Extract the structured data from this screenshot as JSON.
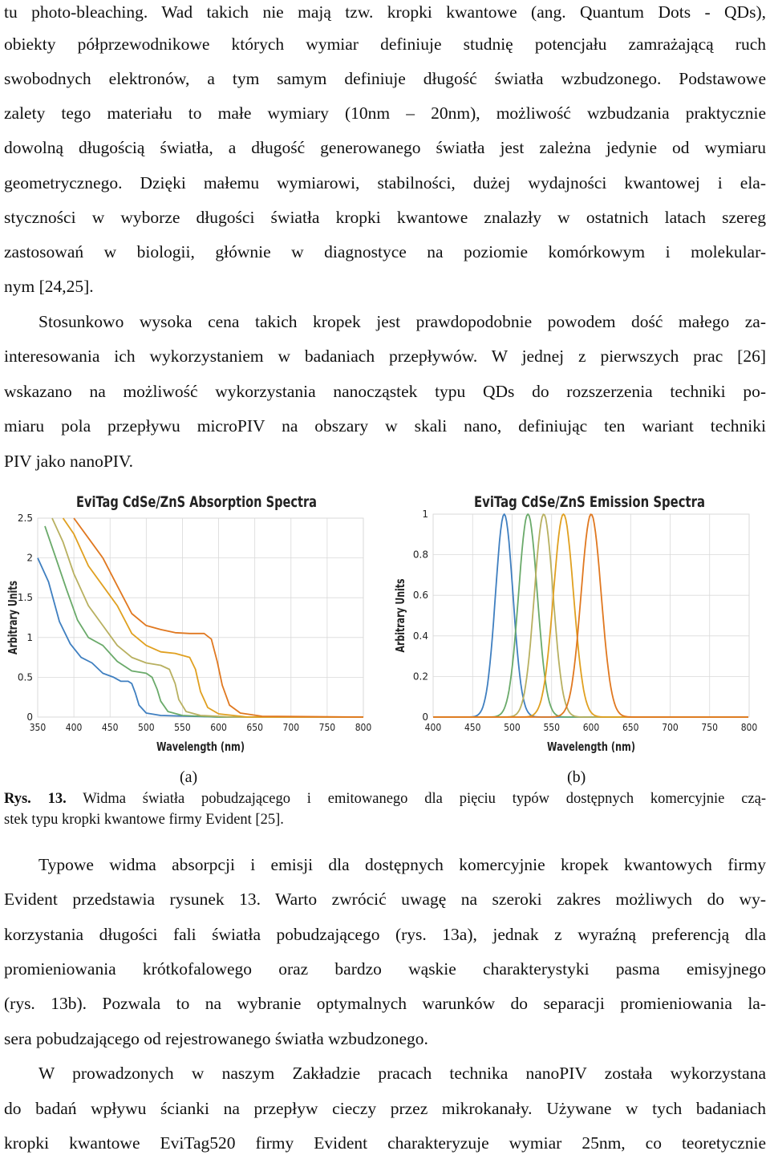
{
  "paragraph1": [
    "tu photo-bleaching. Wad takich nie mają tzw. kropki kwantowe (ang. Quantum Dots - QDs),",
    "obiekty półprzewodnikowe których wymiar definiuje studnię potencjału zamrażającą ruch",
    "swobodnych elektronów, a tym samym definiuje długość światła wzbudzonego. Podstawowe",
    "zalety tego materiału to małe wymiary (10nm – 20nm), możliwość wzbudzania praktycznie",
    "dowolną długością światła, a długość generowanego światła jest zależna jedynie od wymiaru",
    "geometrycznego. Dzięki małemu wymiarowi, stabilności, dużej wydajności kwantowej i ela-",
    "styczności w wyborze długości światła kropki kwantowe znalazły w ostatnich latach szereg",
    "zastosowań w biologii, głównie w diagnostyce na poziomie komórkowym i molekular-",
    "nym [24,25]."
  ],
  "paragraph2": [
    "Stosunkowo wysoka cena takich kropek jest prawdopodobnie powodem dość małego za-",
    "interesowania ich wykorzystaniem w badaniach przepływów. W jednej z pierwszych prac [26]",
    "wskazano na możliwość wykorzystania nanocząstek typu QDs do rozszerzenia techniki po-",
    "miaru pola przepływu microPIV na obszary w skali nano, definiując  ten wariant  techniki",
    "PIV jako nanoPIV."
  ],
  "figure": {
    "label_a": "(a)",
    "label_b": "(b)",
    "caption_prefix": "Rys. 13.",
    "caption_line1": " Widma światła pobudzającego i emitowanego dla pięciu typów dostępnych komercyjnie czą-",
    "caption_line2": "stek typu kropki kwantowe firmy Evident [25]."
  },
  "paragraph3": [
    "Typowe widma absorpcji i emisji dla dostępnych komercyjnie kropek kwantowych firmy",
    "Evident przedstawia rysunek 13. Warto zwrócić uwagę na szeroki zakres możliwych do wy-",
    "korzystania długości fali światła pobudzającego (rys. 13a), jednak z wyraźną preferencją dla",
    "promieniowania krótkofalowego oraz bardzo wąskie charakterystyki pasma emisyjnego",
    "(rys. 13b). Pozwala to na wybranie optymalnych warunków do separacji promieniowania la-",
    "sera pobudzającego od rejestrowanego światła wzbudzonego."
  ],
  "paragraph4": [
    "W prowadzonych w naszym Zakładzie pracach technika nanoPIV została wykorzystana",
    "do badań wpływu ścianki na przepływ cieczy przez mikrokanały. Używane w tych badaniach",
    "kropki kwantowe EviTag520 firmy Evident charakteryzuje wymiar 25nm, co teoretycznie"
  ],
  "chart_data": [
    {
      "type": "line",
      "title": "EviTag CdSe/ZnS Absorption Spectra",
      "xlabel": "Wavelength (nm)",
      "ylabel": "Arbitrary Units",
      "xlim": [
        350,
        800
      ],
      "ylim": [
        0,
        2.5
      ],
      "x_ticks": [
        350,
        400,
        450,
        500,
        550,
        600,
        650,
        700,
        750,
        800
      ],
      "y_ticks": [
        0,
        0.5,
        1,
        1.5,
        2,
        2.5
      ],
      "x_tick_labels": [
        "350",
        "400",
        "450",
        "500",
        "550",
        "600",
        "650",
        "700",
        "750",
        "800"
      ],
      "y_tick_labels": [
        "0",
        "0.5",
        "1",
        "1.5",
        "2",
        "2.5"
      ],
      "grid": true,
      "series": [
        {
          "color": "#3f7fc0",
          "x": [
            350,
            365,
            380,
            395,
            410,
            425,
            440,
            455,
            465,
            475,
            480,
            485,
            490,
            500,
            520,
            560,
            600,
            800
          ],
          "y": [
            2.0,
            1.7,
            1.2,
            0.92,
            0.75,
            0.68,
            0.55,
            0.5,
            0.45,
            0.45,
            0.42,
            0.3,
            0.15,
            0.05,
            0.02,
            0.01,
            0.0,
            0.0
          ]
        },
        {
          "color": "#6aaa6a",
          "x": [
            360,
            375,
            390,
            405,
            420,
            440,
            460,
            480,
            500,
            508,
            515,
            520,
            530,
            550,
            600,
            800
          ],
          "y": [
            2.4,
            2.0,
            1.6,
            1.22,
            1.0,
            0.9,
            0.7,
            0.58,
            0.55,
            0.5,
            0.35,
            0.2,
            0.07,
            0.02,
            0.0,
            0.0
          ]
        },
        {
          "color": "#b8b060",
          "x": [
            370,
            385,
            400,
            420,
            440,
            460,
            480,
            500,
            520,
            532,
            540,
            545,
            555,
            575,
            620,
            800
          ],
          "y": [
            2.5,
            2.2,
            1.8,
            1.4,
            1.15,
            0.9,
            0.75,
            0.68,
            0.65,
            0.6,
            0.42,
            0.22,
            0.07,
            0.02,
            0.0,
            0.0
          ]
        },
        {
          "color": "#e0a020",
          "x": [
            385,
            400,
            420,
            440,
            460,
            480,
            500,
            520,
            540,
            560,
            568,
            575,
            585,
            600,
            640,
            800
          ],
          "y": [
            2.5,
            2.3,
            1.9,
            1.65,
            1.4,
            1.05,
            0.9,
            0.82,
            0.8,
            0.75,
            0.6,
            0.32,
            0.12,
            0.04,
            0.0,
            0.0
          ]
        },
        {
          "color": "#e07820",
          "x": [
            400,
            420,
            440,
            460,
            480,
            500,
            520,
            540,
            560,
            580,
            590,
            598,
            605,
            615,
            630,
            660,
            800
          ],
          "y": [
            2.5,
            2.25,
            2.0,
            1.65,
            1.3,
            1.15,
            1.1,
            1.06,
            1.05,
            1.05,
            0.98,
            0.7,
            0.4,
            0.15,
            0.05,
            0.01,
            0.0
          ]
        }
      ]
    },
    {
      "type": "line",
      "title": "EviTag CdSe/ZnS Emission Spectra",
      "xlabel": "Wavelength (nm)",
      "ylabel": "Arbitrary Units",
      "xlim": [
        400,
        800
      ],
      "ylim": [
        0,
        1
      ],
      "x_ticks": [
        400,
        450,
        500,
        550,
        600,
        650,
        700,
        750,
        800
      ],
      "y_ticks": [
        0,
        0.2,
        0.4,
        0.6,
        0.8,
        1
      ],
      "x_tick_labels": [
        "400",
        "450",
        "500",
        "550",
        "600",
        "650",
        "700",
        "750",
        "800"
      ],
      "y_tick_labels": [
        "0",
        "0.2",
        "0.4",
        "0.6",
        "0.8",
        "1"
      ],
      "grid": true,
      "series": [
        {
          "color": "#3f7fc0",
          "peak": 490,
          "fwhm": 26,
          "amplitude": 1.0
        },
        {
          "color": "#6aaa6a",
          "peak": 520,
          "fwhm": 28,
          "amplitude": 1.0
        },
        {
          "color": "#b8b060",
          "peak": 540,
          "fwhm": 28,
          "amplitude": 1.0
        },
        {
          "color": "#e0a020",
          "peak": 565,
          "fwhm": 30,
          "amplitude": 1.0
        },
        {
          "color": "#e07820",
          "peak": 600,
          "fwhm": 30,
          "amplitude": 1.0
        }
      ]
    }
  ]
}
